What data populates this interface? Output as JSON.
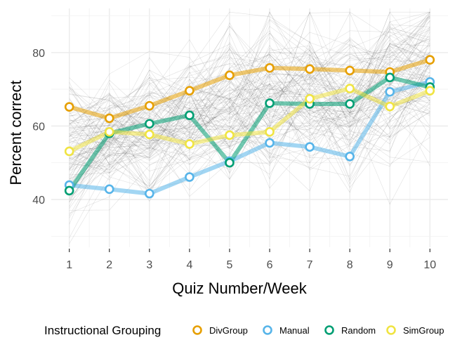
{
  "chart_data": {
    "type": "line",
    "title": "",
    "xlabel": "Quiz Number/Week",
    "ylabel": "Percent correct",
    "x": [
      1,
      2,
      3,
      4,
      5,
      6,
      7,
      8,
      9,
      10
    ],
    "x_ticks": [
      "1",
      "2",
      "3",
      "4",
      "5",
      "6",
      "7",
      "8",
      "9",
      "10"
    ],
    "y_ticks": [
      "40",
      "60",
      "80"
    ],
    "xlim": [
      0.55,
      10.45
    ],
    "ylim": [
      27,
      92
    ],
    "grid": true,
    "legend": {
      "title": "Instructional Grouping",
      "position": "bottom"
    },
    "series": [
      {
        "name": "DivGroup",
        "color": "#E69F00",
        "values": [
          65.2,
          62.1,
          65.5,
          69.6,
          73.8,
          75.8,
          75.5,
          75.1,
          74.7,
          78.0
        ]
      },
      {
        "name": "Manual",
        "color": "#56B4E9",
        "values": [
          43.9,
          42.8,
          41.6,
          46.1,
          50.4,
          55.4,
          54.3,
          51.7,
          69.3,
          72.0
        ]
      },
      {
        "name": "Random",
        "color": "#009E73",
        "values": [
          42.4,
          58.0,
          60.6,
          62.9,
          50.0,
          66.2,
          66.0,
          66.0,
          73.2,
          70.6
        ]
      },
      {
        "name": "SimGroup",
        "color": "#F0E442",
        "values": [
          53.1,
          58.4,
          57.7,
          55.1,
          57.5,
          58.4,
          67.4,
          70.2,
          65.3,
          69.6
        ]
      }
    ],
    "background_lines": {
      "count": 120,
      "color": "#000000",
      "opacity": 0.12,
      "center": [
        52,
        58,
        58,
        62,
        64,
        67,
        68,
        66,
        70,
        76
      ],
      "spread": [
        11,
        8,
        10,
        10,
        11,
        12,
        11,
        12,
        11,
        10
      ]
    }
  }
}
